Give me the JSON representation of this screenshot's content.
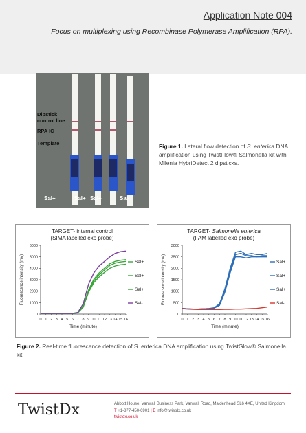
{
  "header": {
    "title": "Application Note 004",
    "subtitle": "Focus on multiplexing using Recombinase Polymerase Amplification (RPA)."
  },
  "photo": {
    "labels": [
      "Dipstick control line",
      "RPA IC",
      "Template"
    ],
    "strip_labels": [
      "Sal+",
      "Sal+",
      "Sal+",
      "Sal-"
    ]
  },
  "figure1": {
    "prefix": "Figure 1.",
    "text_a": "Lateral flow detection of ",
    "species": "S. enterica",
    "text_b": " DNA amplification using TwistFlow® Salmonella kit with Milenia HybriDetect 2 dipsticks."
  },
  "chart_data": [
    {
      "type": "line",
      "title": "TARGET- internal control",
      "subtitle": "(SIMA labelled exo probe)",
      "xlabel": "Time (minute)",
      "ylabel": "Fluorescence intensity (mV)",
      "x": [
        0,
        1,
        2,
        3,
        4,
        5,
        6,
        7,
        8,
        9,
        10,
        11,
        12,
        13,
        14,
        15,
        16
      ],
      "xlim": [
        0,
        16
      ],
      "ylim": [
        0,
        6000
      ],
      "yticks": [
        0,
        1000,
        2000,
        3000,
        4000,
        5000,
        6000
      ],
      "series": [
        {
          "name": "Sal+",
          "color": "#3aa63a",
          "values": [
            60,
            60,
            60,
            60,
            60,
            60,
            60,
            120,
            700,
            2100,
            3050,
            3600,
            4000,
            4400,
            4600,
            4700,
            4750
          ]
        },
        {
          "name": "Sal+",
          "color": "#3aa63a",
          "values": [
            60,
            60,
            60,
            60,
            60,
            60,
            60,
            110,
            650,
            2000,
            2900,
            3450,
            3850,
            4250,
            4450,
            4550,
            4600
          ]
        },
        {
          "name": "Sal+",
          "color": "#3aa63a",
          "values": [
            60,
            60,
            60,
            60,
            60,
            60,
            60,
            100,
            600,
            1900,
            2750,
            3250,
            3650,
            4000,
            4200,
            4300,
            4350
          ]
        },
        {
          "name": "Sal-",
          "color": "#7b3fa0",
          "values": [
            60,
            60,
            60,
            60,
            60,
            60,
            60,
            150,
            900,
            2600,
            3600,
            4200,
            4600,
            5000,
            5300,
            5450,
            5500
          ]
        }
      ]
    },
    {
      "type": "line",
      "title_a": "TARGET- ",
      "title_b": "Salmonella enterica",
      "subtitle": "(FAM labelled exo probe)",
      "xlabel": "Time (minute)",
      "ylabel": "Fluorescence intensity (mV)",
      "x": [
        0,
        1,
        2,
        3,
        4,
        5,
        6,
        7,
        8,
        9,
        10,
        11,
        12,
        13,
        14,
        15,
        16
      ],
      "xlim": [
        0,
        16
      ],
      "ylim": [
        0,
        3000
      ],
      "yticks": [
        0,
        500,
        1000,
        1500,
        2000,
        2500,
        3000
      ],
      "series": [
        {
          "name": "Sal+",
          "color": "#2f6fb8",
          "values": [
            250,
            230,
            220,
            220,
            230,
            240,
            280,
            450,
            1100,
            2000,
            2700,
            2750,
            2600,
            2650,
            2600,
            2600,
            2650
          ]
        },
        {
          "name": "Sal+",
          "color": "#2f6fb8",
          "values": [
            250,
            230,
            220,
            220,
            230,
            240,
            270,
            400,
            1000,
            1900,
            2600,
            2650,
            2550,
            2550,
            2500,
            2550,
            2550
          ]
        },
        {
          "name": "Sal+",
          "color": "#2f6fb8",
          "values": [
            250,
            230,
            220,
            220,
            230,
            240,
            260,
            380,
            950,
            1800,
            2500,
            2500,
            2450,
            2500,
            2500,
            2500,
            2500
          ]
        },
        {
          "name": "Sal-",
          "color": "#d7362c",
          "values": [
            240,
            220,
            210,
            200,
            200,
            200,
            200,
            200,
            210,
            210,
            220,
            220,
            230,
            240,
            250,
            280,
            310
          ]
        }
      ]
    }
  ],
  "figure2": {
    "prefix": "Figure 2.",
    "text": " Real-time fluorescence detection of S. enterica DNA amplification using TwistGlow® Salmonella kit."
  },
  "footer": {
    "logo": "TwistDx",
    "address": "Abbott House, Vanwall Business Park, Vanwall Road, Maidenhead SL6 4XE, United Kingdom",
    "phone_prefix": "T",
    "phone": "+1-877-450-6901",
    "sep": "|",
    "email_prefix": "E",
    "email": "info@twistdx.co.uk",
    "web": "twistdx.co.uk"
  }
}
